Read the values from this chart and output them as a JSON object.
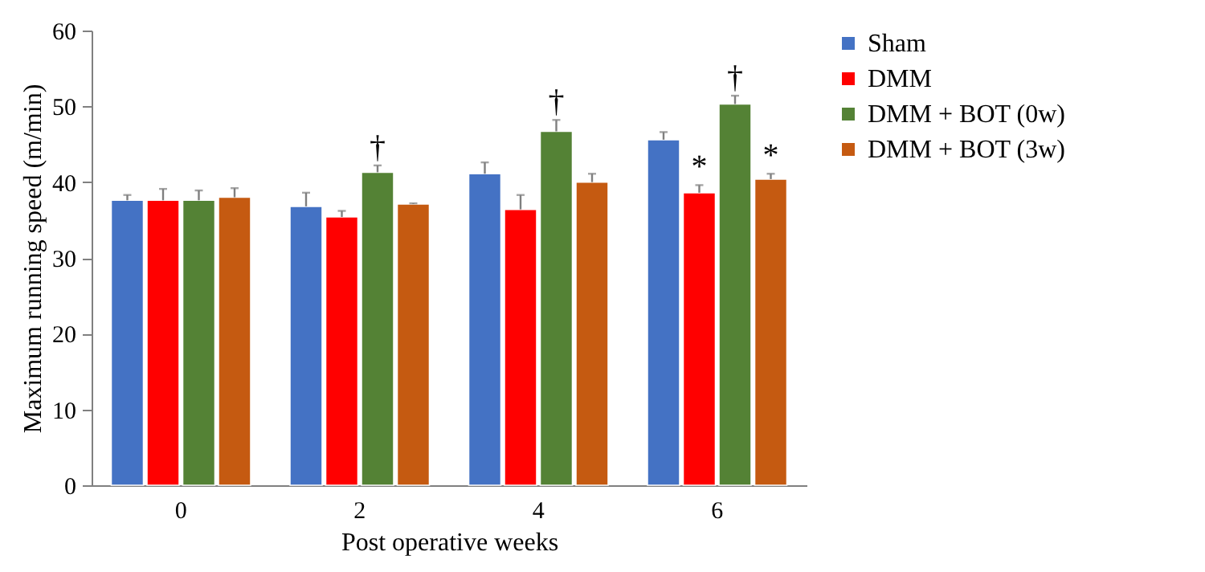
{
  "chart_data": {
    "type": "bar",
    "xlabel": "Post operative weeks",
    "ylabel": "Maximum running speed (m/min)",
    "categories": [
      "0",
      "2",
      "4",
      "6"
    ],
    "series": [
      {
        "name": "Sham",
        "color": "#4472c4",
        "values": [
          37.6,
          36.8,
          41.1,
          45.6
        ],
        "errors": [
          [
            37.6,
            38.3
          ],
          [
            36.8,
            38.6
          ],
          [
            41.1,
            42.6
          ],
          [
            45.6,
            46.6
          ]
        ]
      },
      {
        "name": "DMM",
        "color": "#ff0000",
        "values": [
          37.6,
          35.4,
          36.4,
          38.6
        ],
        "errors": [
          [
            37.6,
            39.1
          ],
          [
            35.4,
            36.2
          ],
          [
            36.4,
            38.3
          ],
          [
            38.6,
            39.6
          ]
        ]
      },
      {
        "name": "DMM + BOT (0w)",
        "color": "#548235",
        "values": [
          37.6,
          41.3,
          46.7,
          50.3
        ],
        "errors": [
          [
            37.6,
            38.9
          ],
          [
            41.3,
            42.2
          ],
          [
            46.7,
            48.2
          ],
          [
            50.3,
            51.4
          ]
        ]
      },
      {
        "name": "DMM + BOT (3w)",
        "color": "#c55a11",
        "values": [
          38.0,
          37.1,
          40.0,
          40.4
        ],
        "errors": [
          [
            38.0,
            39.2
          ],
          [
            37.1,
            37.2
          ],
          [
            40.0,
            41.1
          ],
          [
            40.4,
            41.1
          ]
        ]
      }
    ],
    "annotations": [
      {
        "text": "†",
        "x": "2",
        "y": 41.3
      },
      {
        "text": "†",
        "x": "4",
        "y": 46.7
      },
      {
        "text": "†",
        "x": "6",
        "y": 50.3
      },
      {
        "text": "*",
        "x": "6",
        "y": 38.6
      },
      {
        "text": "*",
        "x": "6",
        "y": 40.4
      }
    ],
    "ylim": [
      0,
      60
    ],
    "yticks": [
      0,
      10,
      20,
      30,
      40,
      50,
      60
    ],
    "grid": false,
    "legend": "right"
  }
}
